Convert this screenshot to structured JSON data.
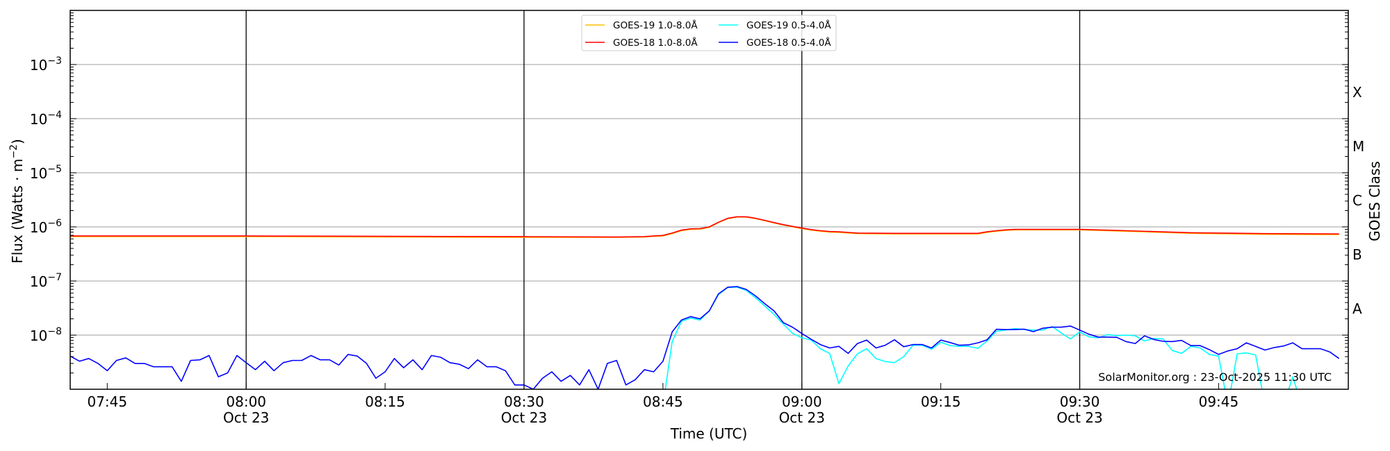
{
  "chart_data": {
    "type": "line",
    "title": "",
    "xlabel": "Time (UTC)",
    "ylabel": "Flux (Watts · m⁻²)",
    "ylabel_base": "Flux (Watts · m",
    "ylabel_exp": "−2",
    "ylabel_close": ")",
    "y2label": "GOES Class",
    "yscale": "log",
    "xlim": [
      "07:41",
      "09:59"
    ],
    "ylim": [
      1e-09,
      0.01
    ],
    "grid": "horizontal at decades",
    "legend_placement": "top-center",
    "watermark": "SolarMonitor.org : 23-Oct-2025 11:30 UTC",
    "x_ticks": [
      {
        "t": "07:45",
        "label": "07:45",
        "date": ""
      },
      {
        "t": "08:00",
        "label": "08:00",
        "date": "Oct 23"
      },
      {
        "t": "08:15",
        "label": "08:15",
        "date": ""
      },
      {
        "t": "08:30",
        "label": "08:30",
        "date": "Oct 23"
      },
      {
        "t": "08:45",
        "label": "08:45",
        "date": ""
      },
      {
        "t": "09:00",
        "label": "09:00",
        "date": "Oct 23"
      },
      {
        "t": "09:15",
        "label": "09:15",
        "date": ""
      },
      {
        "t": "09:30",
        "label": "09:30",
        "date": "Oct 23"
      },
      {
        "t": "09:45",
        "label": "09:45",
        "date": ""
      }
    ],
    "vertical_lines": [
      "08:00",
      "08:30",
      "09:00",
      "09:30"
    ],
    "y_ticks": [
      {
        "exp": -8,
        "base": "10",
        "sup": "−8"
      },
      {
        "exp": -7,
        "base": "10",
        "sup": "−7"
      },
      {
        "exp": -6,
        "base": "10",
        "sup": "−6"
      },
      {
        "exp": -5,
        "base": "10",
        "sup": "−5"
      },
      {
        "exp": -4,
        "base": "10",
        "sup": "−4"
      },
      {
        "exp": -3,
        "base": "10",
        "sup": "−3"
      }
    ],
    "goes_classes": [
      {
        "label": "A",
        "lower": 1e-08
      },
      {
        "label": "B",
        "lower": 1e-07
      },
      {
        "label": "C",
        "lower": 1e-06
      },
      {
        "label": "M",
        "lower": 1e-05
      },
      {
        "label": "X",
        "lower": 0.0001
      }
    ],
    "x": [
      "07:41",
      "07:42",
      "07:43",
      "07:44",
      "07:45",
      "07:46",
      "07:47",
      "07:48",
      "07:49",
      "07:50",
      "07:51",
      "07:52",
      "07:53",
      "07:54",
      "07:55",
      "07:56",
      "07:57",
      "07:58",
      "07:59",
      "08:00",
      "08:01",
      "08:02",
      "08:03",
      "08:04",
      "08:05",
      "08:06",
      "08:07",
      "08:08",
      "08:09",
      "08:10",
      "08:11",
      "08:12",
      "08:13",
      "08:14",
      "08:15",
      "08:16",
      "08:17",
      "08:18",
      "08:19",
      "08:20",
      "08:21",
      "08:22",
      "08:23",
      "08:24",
      "08:25",
      "08:26",
      "08:27",
      "08:28",
      "08:29",
      "08:30",
      "08:31",
      "08:32",
      "08:33",
      "08:34",
      "08:35",
      "08:36",
      "08:37",
      "08:38",
      "08:39",
      "08:40",
      "08:41",
      "08:42",
      "08:43",
      "08:44",
      "08:45",
      "08:46",
      "08:47",
      "08:48",
      "08:49",
      "08:50",
      "08:51",
      "08:52",
      "08:53",
      "08:54",
      "08:55",
      "08:56",
      "08:57",
      "08:58",
      "08:59",
      "09:00",
      "09:01",
      "09:02",
      "09:03",
      "09:04",
      "09:05",
      "09:06",
      "09:07",
      "09:08",
      "09:09",
      "09:10",
      "09:11",
      "09:12",
      "09:13",
      "09:14",
      "09:15",
      "09:16",
      "09:17",
      "09:18",
      "09:19",
      "09:20",
      "09:21",
      "09:22",
      "09:23",
      "09:24",
      "09:25",
      "09:26",
      "09:27",
      "09:28",
      "09:29",
      "09:30",
      "09:31",
      "09:32",
      "09:33",
      "09:34",
      "09:35",
      "09:36",
      "09:37",
      "09:38",
      "09:39",
      "09:40",
      "09:41",
      "09:42",
      "09:43",
      "09:44",
      "09:45",
      "09:46",
      "09:47",
      "09:48",
      "09:49",
      "09:50",
      "09:51",
      "09:52",
      "09:53",
      "09:54",
      "09:55",
      "09:56",
      "09:57",
      "09:58"
    ],
    "series": [
      {
        "name": "GOES-19 1.0-8.0Å",
        "color": "#ffc000",
        "x": [
          "07:41",
          "08:00",
          "08:15",
          "08:30",
          "08:40",
          "08:43",
          "08:44",
          "08:45",
          "08:46",
          "08:47",
          "08:48",
          "08:49",
          "08:50",
          "08:51",
          "08:52",
          "08:53",
          "08:54",
          "08:55",
          "08:56",
          "08:57",
          "08:58",
          "08:59",
          "09:00",
          "09:01",
          "09:02",
          "09:03",
          "09:04",
          "09:05",
          "09:06",
          "09:10",
          "09:19",
          "09:20",
          "09:21",
          "09:22",
          "09:23",
          "09:30",
          "09:35",
          "09:42",
          "09:50",
          "09:58"
        ],
        "y": [
          6.6e-07,
          6.6e-07,
          6.5e-07,
          6.4e-07,
          6.4e-07,
          6.5e-07,
          6.7e-07,
          6.8e-07,
          7.5e-07,
          8.5e-07,
          9e-07,
          9.1e-07,
          9.8e-07,
          1.2e-06,
          1.42e-06,
          1.52e-06,
          1.52e-06,
          1.42e-06,
          1.3e-06,
          1.18e-06,
          1.08e-06,
          1e-06,
          9.3e-07,
          8.7e-07,
          8.3e-07,
          8e-07,
          7.9e-07,
          7.7e-07,
          7.5e-07,
          7.4e-07,
          7.4e-07,
          7.9e-07,
          8.3e-07,
          8.6e-07,
          8.8e-07,
          8.8e-07,
          8.3e-07,
          7.6e-07,
          7.3e-07,
          7.2e-07
        ]
      },
      {
        "name": "GOES-19 0.5-4.0Å",
        "color": "#00ffff",
        "y": [
          null,
          null,
          null,
          null,
          null,
          null,
          null,
          null,
          null,
          null,
          null,
          null,
          null,
          null,
          null,
          null,
          null,
          null,
          null,
          null,
          null,
          null,
          null,
          null,
          null,
          null,
          null,
          null,
          null,
          null,
          null,
          null,
          null,
          null,
          null,
          null,
          null,
          null,
          null,
          null,
          null,
          null,
          null,
          null,
          null,
          null,
          null,
          null,
          null,
          null,
          null,
          null,
          null,
          null,
          null,
          null,
          null,
          null,
          null,
          null,
          null,
          null,
          null,
          null,
          5e-10,
          7.6e-09,
          1.8e-08,
          2.07e-08,
          1.9e-08,
          2.8e-08,
          5.6e-08,
          7.6e-08,
          7.7e-08,
          6.7e-08,
          4.9e-08,
          3.45e-08,
          2.4e-08,
          1.6e-08,
          1.08e-08,
          8.9e-09,
          8.1e-09,
          5.6e-09,
          4.6e-09,
          1.27e-09,
          2.7e-09,
          4.5e-09,
          5.6e-09,
          3.7e-09,
          3.26e-09,
          3.1e-09,
          4e-09,
          6.5e-09,
          6.5e-09,
          5.5e-09,
          7.4e-09,
          6.4e-09,
          6.2e-09,
          6.2e-09,
          5.7e-09,
          7.8e-09,
          1.18e-08,
          1.24e-08,
          1.32e-08,
          1.27e-08,
          1.24e-08,
          1.24e-08,
          1.44e-08,
          1.1e-08,
          8.5e-09,
          1.15e-08,
          9.3e-09,
          8.9e-09,
          1.02e-08,
          9.8e-09,
          1e-08,
          9.7e-09,
          7.8e-09,
          8.7e-09,
          8.5e-09,
          5.2e-09,
          4.6e-09,
          6.2e-09,
          5.8e-09,
          4.4e-09,
          4.1e-09,
          5e-10,
          4.5e-09,
          4.7e-09,
          4.3e-09,
          5e-10,
          5e-10,
          5e-10,
          1.7e-09,
          5e-10,
          5e-10,
          5e-10,
          5e-10,
          5e-10
        ]
      },
      {
        "name": "GOES-18 1.0-8.0Å",
        "color": "#ff0000",
        "x": [
          "07:41",
          "08:00",
          "08:15",
          "08:30",
          "08:40",
          "08:43",
          "08:44",
          "08:45",
          "08:46",
          "08:47",
          "08:48",
          "08:49",
          "08:50",
          "08:51",
          "08:52",
          "08:53",
          "08:54",
          "08:55",
          "08:56",
          "08:57",
          "08:58",
          "08:59",
          "09:00",
          "09:01",
          "09:02",
          "09:03",
          "09:04",
          "09:05",
          "09:06",
          "09:10",
          "09:19",
          "09:20",
          "09:21",
          "09:22",
          "09:23",
          "09:30",
          "09:35",
          "09:42",
          "09:50",
          "09:58"
        ],
        "y": [
          6.8e-07,
          6.8e-07,
          6.7e-07,
          6.6e-07,
          6.5e-07,
          6.6e-07,
          6.8e-07,
          6.95e-07,
          7.7e-07,
          8.7e-07,
          9.2e-07,
          9.3e-07,
          1e-06,
          1.22e-06,
          1.44e-06,
          1.54e-06,
          1.54e-06,
          1.44e-06,
          1.32e-06,
          1.2e-06,
          1.1e-06,
          1.02e-06,
          9.5e-07,
          8.9e-07,
          8.5e-07,
          8.2e-07,
          8.1e-07,
          7.9e-07,
          7.7e-07,
          7.6e-07,
          7.6e-07,
          8.1e-07,
          8.5e-07,
          8.8e-07,
          9e-07,
          9e-07,
          8.5e-07,
          7.8e-07,
          7.5e-07,
          7.4e-07
        ]
      },
      {
        "name": "GOES-18 0.5-4.0Å",
        "color": "#0000ff",
        "y": [
          4.1e-09,
          3.3e-09,
          3.7e-09,
          3e-09,
          2.2e-09,
          3.4e-09,
          3.8e-09,
          3e-09,
          3e-09,
          2.6e-09,
          2.6e-09,
          2.6e-09,
          1.4e-09,
          3.4e-09,
          3.5e-09,
          4.2e-09,
          1.7e-09,
          2e-09,
          4.2e-09,
          3.1e-09,
          2.3e-09,
          3.3e-09,
          2.2e-09,
          3.1e-09,
          3.4e-09,
          3.4e-09,
          4.2e-09,
          3.5e-09,
          3.5e-09,
          2.8e-09,
          4.4e-09,
          4.1e-09,
          3e-09,
          1.6e-09,
          2.1e-09,
          3.7e-09,
          2.5e-09,
          3.5e-09,
          2.3e-09,
          4.2e-09,
          3.9e-09,
          3.1e-09,
          2.9e-09,
          2.4e-09,
          3.5e-09,
          2.6e-09,
          2.6e-09,
          2.2e-09,
          1.2e-09,
          1.2e-09,
          1e-09,
          1.6e-09,
          2.1e-09,
          1.4e-09,
          1.8e-09,
          1.2e-09,
          2.3e-09,
          1e-09,
          3e-09,
          3.4e-09,
          1.2e-09,
          1.5e-09,
          2.3e-09,
          2.1e-09,
          3.3e-09,
          1.15e-08,
          1.9e-08,
          2.2e-08,
          2e-08,
          2.8e-08,
          5.8e-08,
          7.7e-08,
          7.9e-08,
          7e-08,
          5.3e-08,
          3.8e-08,
          2.8e-08,
          1.7e-08,
          1.4e-08,
          1.07e-08,
          8.4e-09,
          6.7e-09,
          5.8e-09,
          6.2e-09,
          4.6e-09,
          7e-09,
          8.1e-09,
          5.8e-09,
          6.5e-09,
          8.2e-09,
          6.1e-09,
          6.7e-09,
          6.7e-09,
          5.8e-09,
          8.1e-09,
          7.3e-09,
          6.5e-09,
          6.6e-09,
          7.2e-09,
          8.2e-09,
          1.28e-08,
          1.27e-08,
          1.27e-08,
          1.29e-08,
          1.16e-08,
          1.34e-08,
          1.4e-08,
          1.4e-08,
          1.47e-08,
          1.24e-08,
          1.04e-08,
          9.2e-09,
          9.2e-09,
          9.1e-09,
          7.6e-09,
          7e-09,
          9.7e-09,
          8.3e-09,
          7.7e-09,
          7.6e-09,
          8e-09,
          6.4e-09,
          6.4e-09,
          5.4e-09,
          4.4e-09,
          5.1e-09,
          5.6e-09,
          7.2e-09,
          6.2e-09,
          5.3e-09,
          5.9e-09,
          6.3e-09,
          7.2e-09,
          5.6e-09,
          5.6e-09,
          5.6e-09,
          4.9e-09,
          3.7e-09
        ]
      }
    ],
    "legend_order": [
      0,
      1,
      2,
      3
    ]
  }
}
